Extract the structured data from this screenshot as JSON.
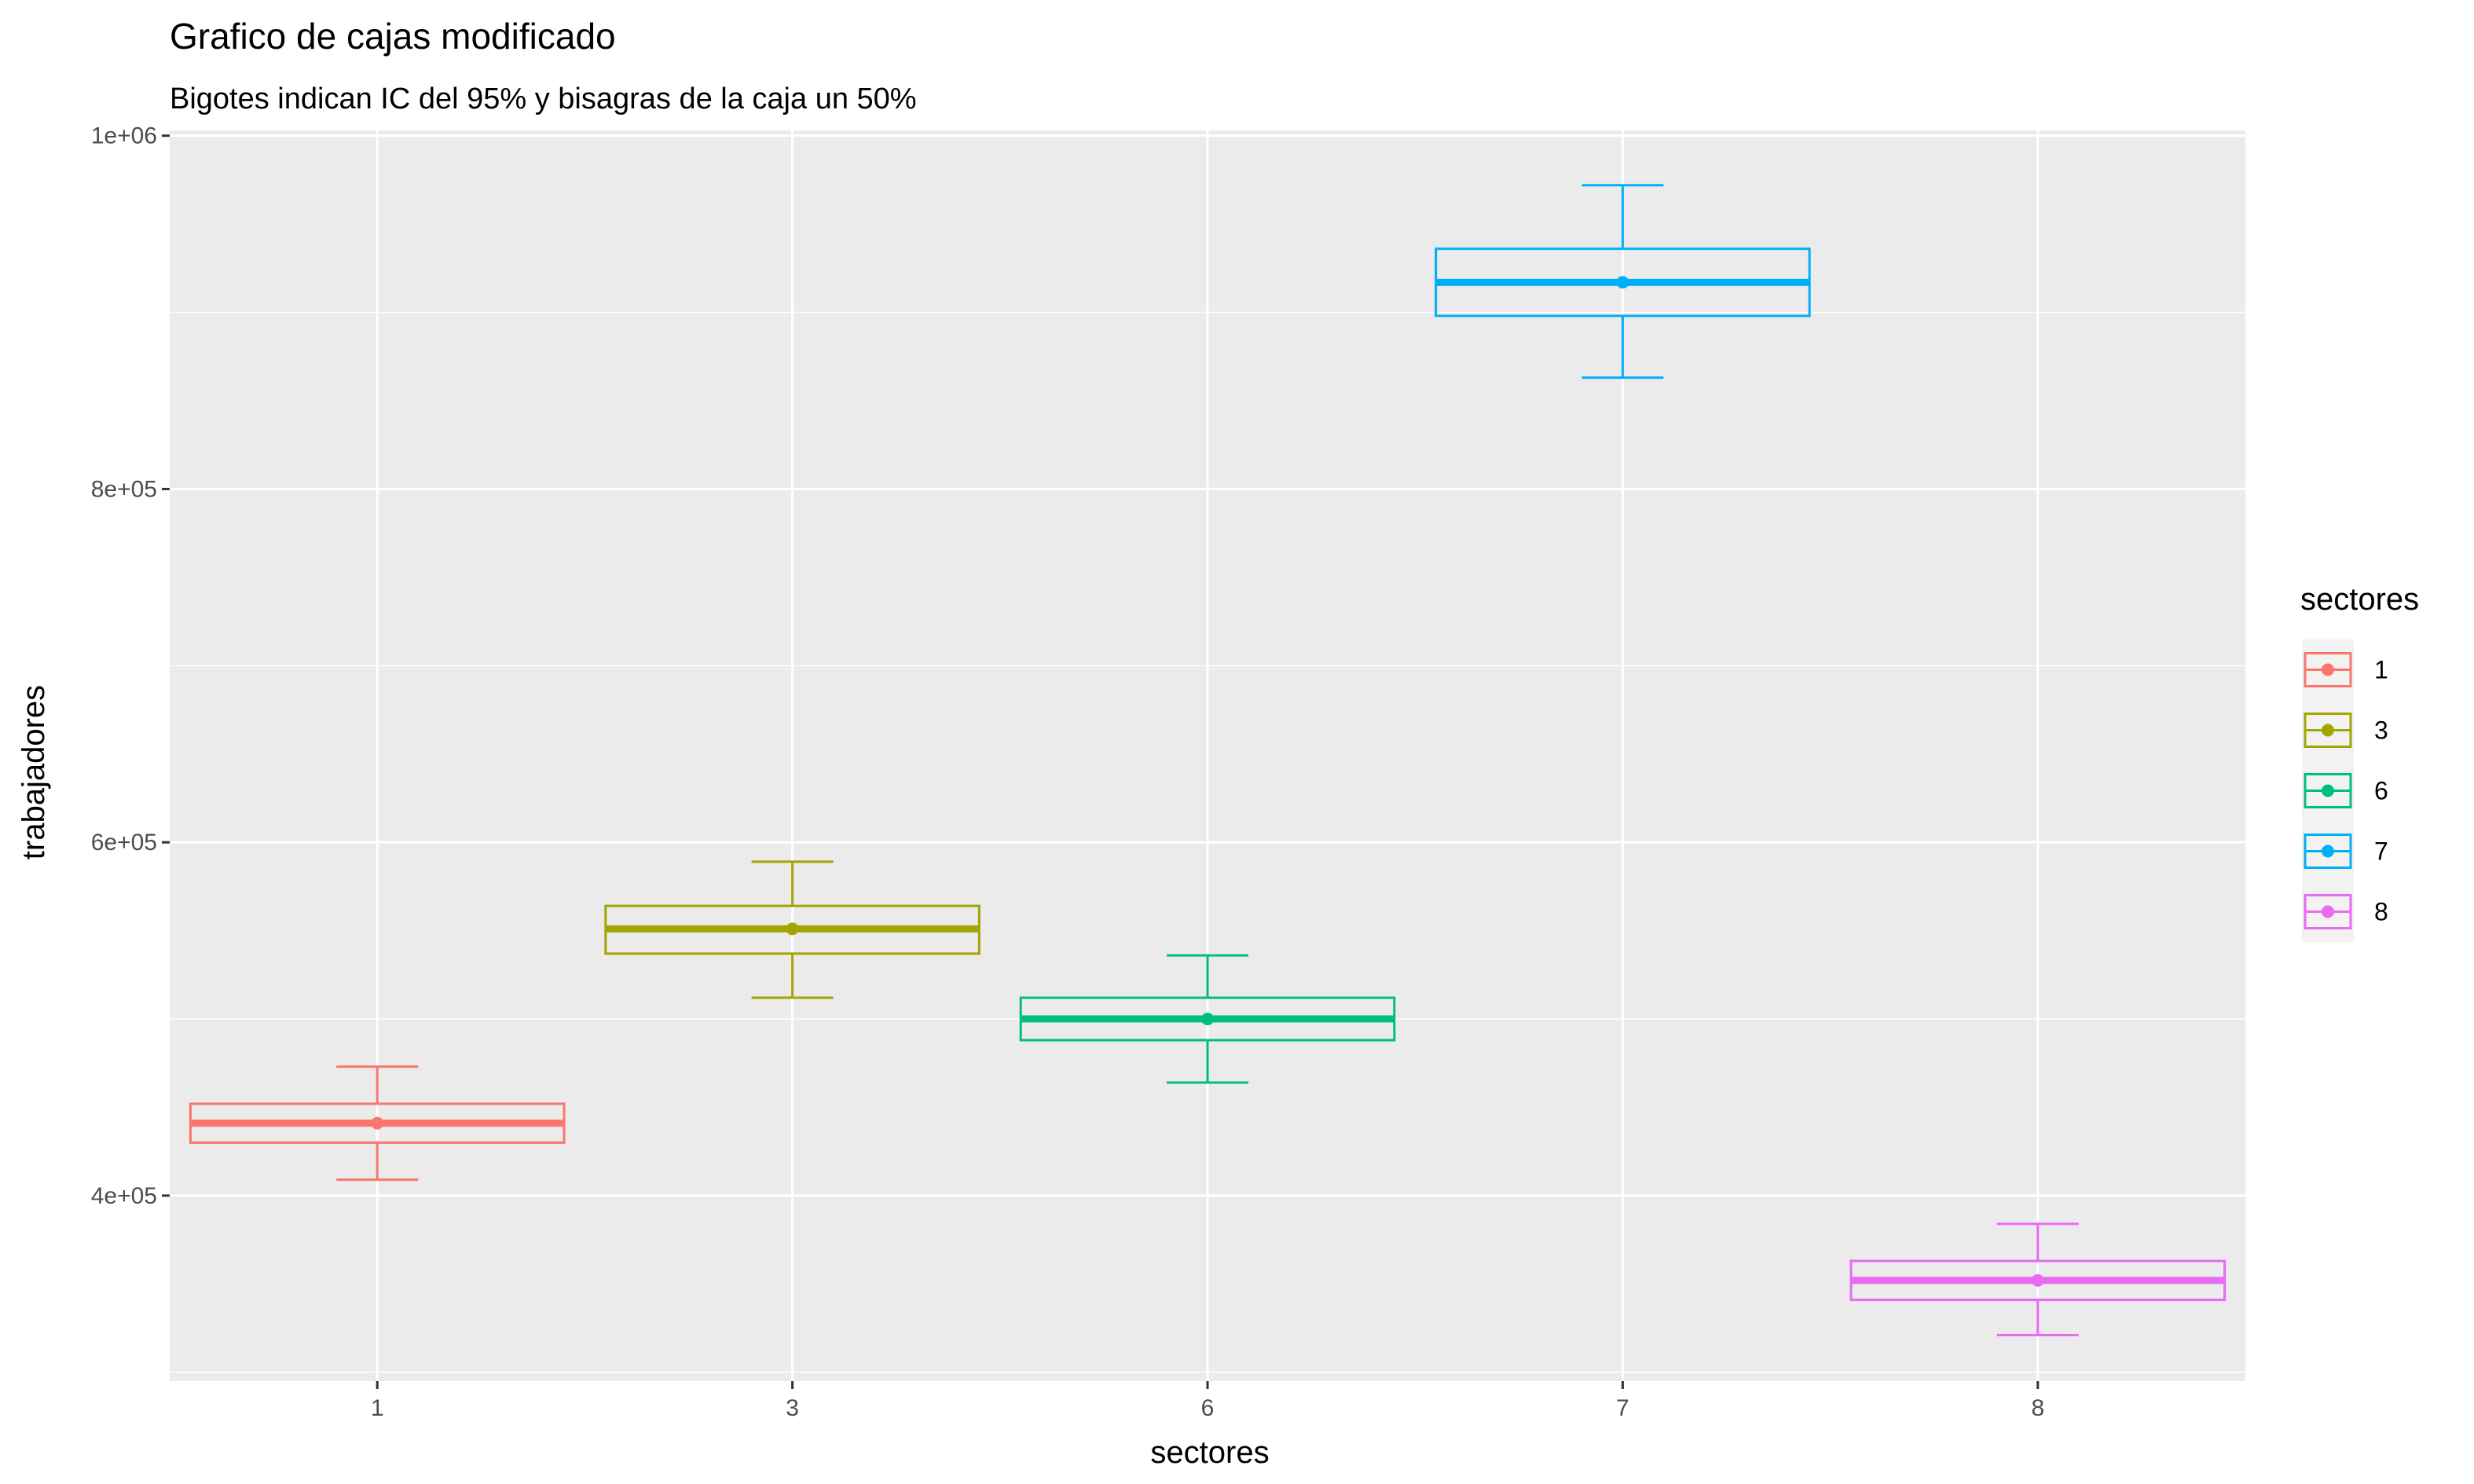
{
  "chart_data": {
    "type": "boxplot",
    "title": "Grafico de cajas modificado",
    "subtitle": "Bigotes indican IC del 95% y bisagras de la caja un 50%",
    "xlabel": "sectores",
    "ylabel": "trabajadores",
    "categories": [
      "1",
      "3",
      "6",
      "7",
      "8"
    ],
    "ylim": [
      295000,
      1003000
    ],
    "yticks": [
      400000,
      600000,
      800000,
      1000000
    ],
    "ytick_labels": [
      "4e+05",
      "6e+05",
      "8e+05",
      "1e+06"
    ],
    "grid": true,
    "legend": {
      "title": "sectores",
      "position": "right"
    },
    "series": [
      {
        "name": "1",
        "color": "#F8766D",
        "whisker_low": 409000,
        "lower": 430000,
        "middle": 441000,
        "upper": 452000,
        "whisker_high": 473000
      },
      {
        "name": "3",
        "color": "#A3A500",
        "whisker_low": 512000,
        "lower": 537000,
        "middle": 551000,
        "upper": 564000,
        "whisker_high": 589000
      },
      {
        "name": "6",
        "color": "#00BF7D",
        "whisker_low": 464000,
        "lower": 488000,
        "middle": 500000,
        "upper": 512000,
        "whisker_high": 536000
      },
      {
        "name": "7",
        "color": "#00B0F6",
        "whisker_low": 863000,
        "lower": 898000,
        "middle": 917000,
        "upper": 936000,
        "whisker_high": 972000
      },
      {
        "name": "8",
        "color": "#E76BF3",
        "whisker_low": 321000,
        "lower": 341000,
        "middle": 352000,
        "upper": 363000,
        "whisker_high": 384000
      }
    ]
  }
}
